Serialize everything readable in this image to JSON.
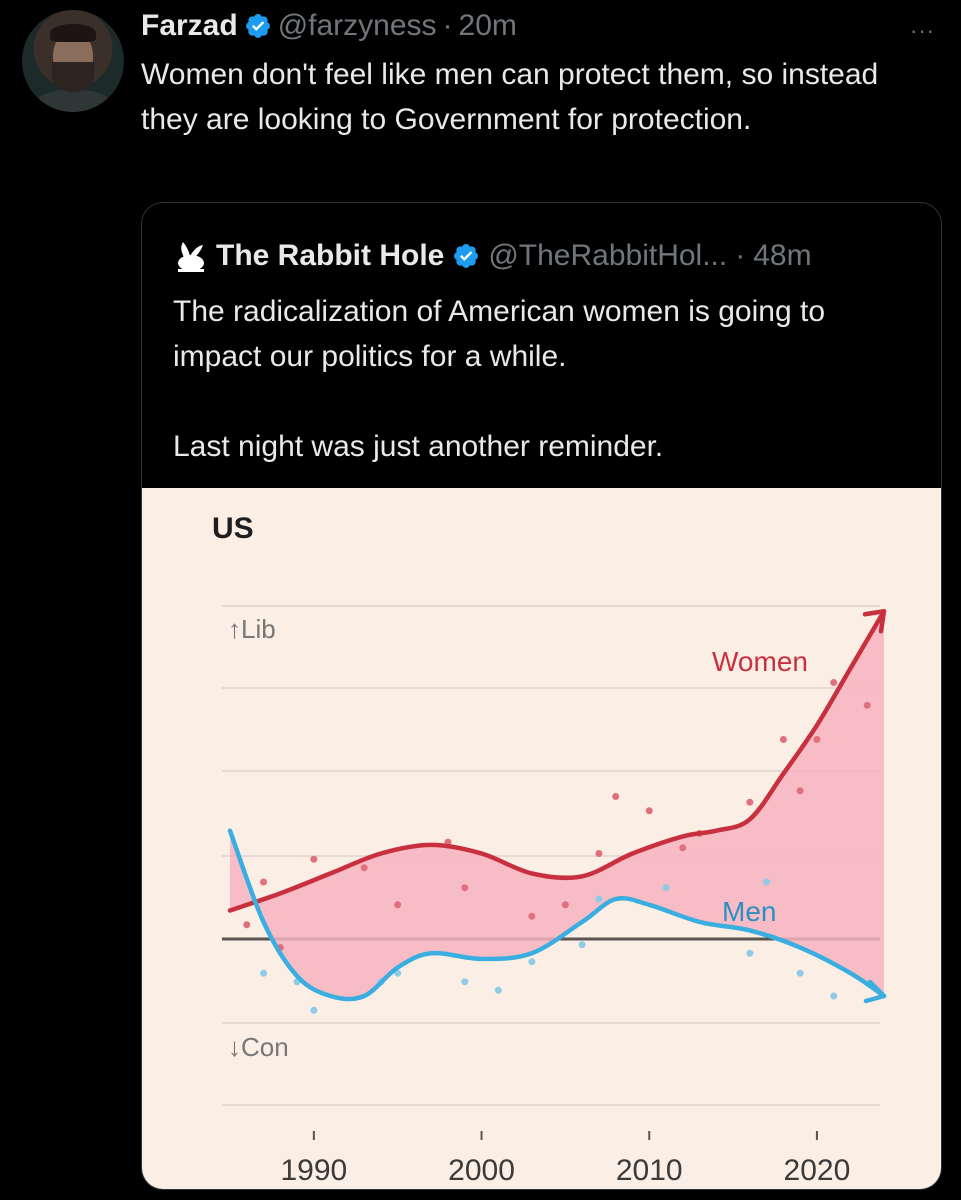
{
  "tweet": {
    "author": "Farzad",
    "handle": "@farzyness",
    "separator": "·",
    "time": "20m",
    "more": "···",
    "text": "Women don't feel like men can protect them, so instead they are looking to Government for protection."
  },
  "quoted": {
    "author": "The Rabbit Hole",
    "handle": "@TheRabbitHol...",
    "separator": "·",
    "time": "48m",
    "text_line1": "The radicalization of American women is going to impact our politics for a while.",
    "text_line2": "Last night was just another reminder."
  },
  "colors": {
    "women": "#c9303f",
    "women_fill": "#f6b3c0",
    "men": "#3aaee0",
    "chart_bg": "#fbeee4",
    "verified": "#1d9bf0"
  },
  "chart_data": {
    "type": "line",
    "title": "US",
    "ylabel_top": "↑Lib",
    "ylabel_bottom": "↓Con",
    "x_ticks": [
      "1990",
      "2000",
      "2010",
      "2020"
    ],
    "xlim": [
      1985,
      2024
    ],
    "ylim": [
      -1,
      1
    ],
    "series": [
      {
        "name": "Women",
        "x": [
          1985,
          1988,
          1991,
          1994,
          1997,
          2000,
          2003,
          2006,
          2009,
          2012,
          2014,
          2016,
          2018,
          2020,
          2022,
          2024
        ],
        "y": [
          0.1,
          0.16,
          0.23,
          0.3,
          0.33,
          0.3,
          0.23,
          0.22,
          0.3,
          0.36,
          0.38,
          0.42,
          0.58,
          0.75,
          0.95,
          1.15
        ]
      },
      {
        "name": "Men",
        "x": [
          1985,
          1987,
          1989,
          1991,
          1993,
          1995,
          1997,
          2000,
          2003,
          2006,
          2008,
          2010,
          2013,
          2016,
          2019,
          2022,
          2024
        ],
        "y": [
          0.38,
          0.06,
          -0.13,
          -0.2,
          -0.2,
          -0.1,
          -0.05,
          -0.07,
          -0.05,
          0.06,
          0.14,
          0.12,
          0.06,
          0.03,
          -0.03,
          -0.12,
          -0.2
        ]
      }
    ],
    "grid": true
  }
}
